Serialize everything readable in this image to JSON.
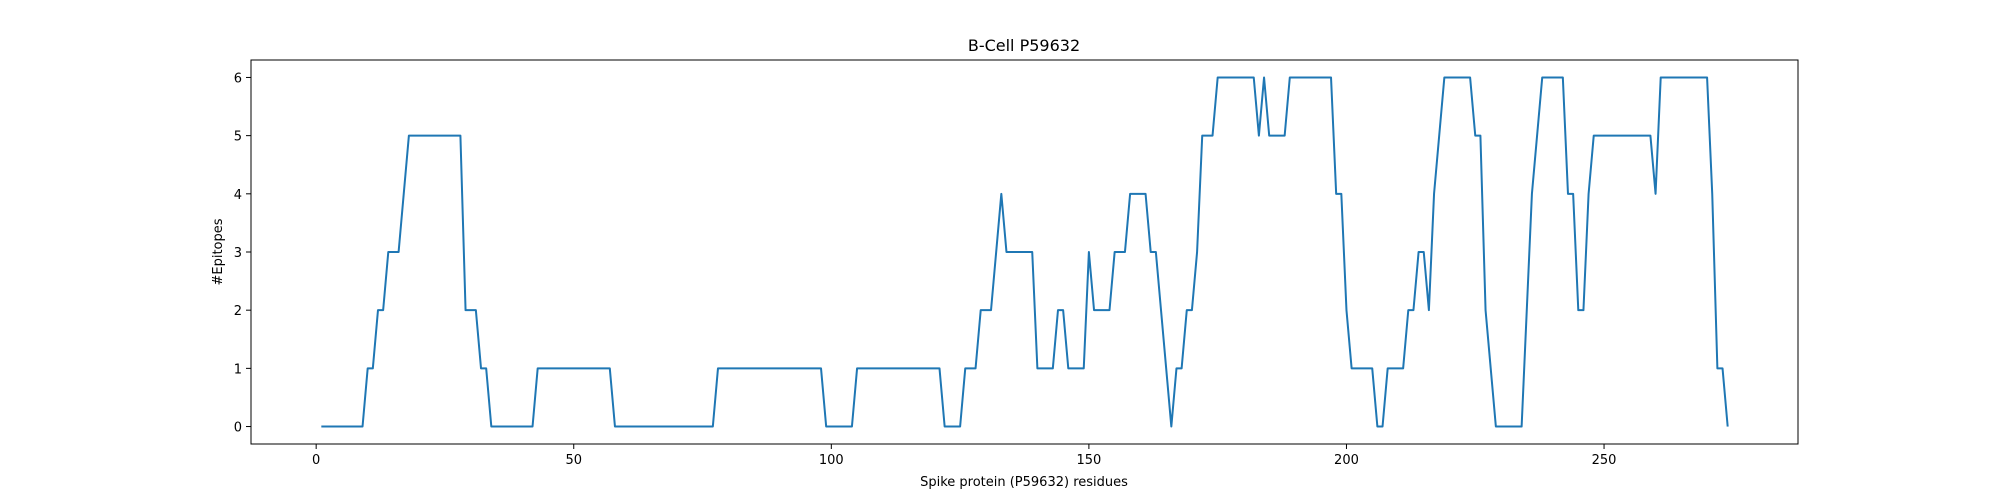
{
  "chart_data": {
    "type": "line",
    "title": "B-Cell P59632",
    "xlabel": "Spike protein (P59632) residues",
    "ylabel": "#Epitopes",
    "x": [
      1,
      2,
      3,
      4,
      5,
      6,
      7,
      8,
      9,
      10,
      11,
      12,
      13,
      14,
      15,
      16,
      17,
      18,
      19,
      20,
      21,
      22,
      23,
      24,
      25,
      26,
      27,
      28,
      29,
      30,
      31,
      32,
      33,
      34,
      35,
      36,
      37,
      38,
      39,
      40,
      41,
      42,
      43,
      44,
      45,
      46,
      47,
      48,
      49,
      50,
      51,
      52,
      53,
      54,
      55,
      56,
      57,
      58,
      59,
      60,
      61,
      62,
      63,
      64,
      65,
      66,
      67,
      68,
      69,
      70,
      71,
      72,
      73,
      74,
      75,
      76,
      77,
      78,
      79,
      80,
      81,
      82,
      83,
      84,
      85,
      86,
      87,
      88,
      89,
      90,
      91,
      92,
      93,
      94,
      95,
      96,
      97,
      98,
      99,
      100,
      101,
      102,
      103,
      104,
      105,
      106,
      107,
      108,
      109,
      110,
      111,
      112,
      113,
      114,
      115,
      116,
      117,
      118,
      119,
      120,
      121,
      122,
      123,
      124,
      125,
      126,
      127,
      128,
      129,
      130,
      131,
      132,
      133,
      134,
      135,
      136,
      137,
      138,
      139,
      140,
      141,
      142,
      143,
      144,
      145,
      146,
      147,
      148,
      149,
      150,
      151,
      152,
      153,
      154,
      155,
      156,
      157,
      158,
      159,
      160,
      161,
      162,
      163,
      164,
      165,
      166,
      167,
      168,
      169,
      170,
      171,
      172,
      173,
      174,
      175,
      176,
      177,
      178,
      179,
      180,
      181,
      182,
      183,
      184,
      185,
      186,
      187,
      188,
      189,
      190,
      191,
      192,
      193,
      194,
      195,
      196,
      197,
      198,
      199,
      200,
      201,
      202,
      203,
      204,
      205,
      206,
      207,
      208,
      209,
      210,
      211,
      212,
      213,
      214,
      215,
      216,
      217,
      218,
      219,
      220,
      221,
      222,
      223,
      224,
      225,
      226,
      227,
      228,
      229,
      230,
      231,
      232,
      233,
      234,
      235,
      236,
      237,
      238,
      239,
      240,
      241,
      242,
      243,
      244,
      245,
      246,
      247,
      248,
      249,
      250,
      251,
      252,
      253,
      254,
      255,
      256,
      257,
      258,
      259,
      260,
      261,
      262,
      263,
      264,
      265,
      266,
      267,
      268,
      269,
      270,
      271,
      272,
      273,
      274
    ],
    "series": [
      {
        "color": "#1f77b4",
        "values": [
          0,
          0,
          0,
          0,
          0,
          0,
          0,
          0,
          0,
          1,
          1,
          2,
          2,
          3,
          3,
          3,
          4,
          5,
          5,
          5,
          5,
          5,
          5,
          5,
          5,
          5,
          5,
          5,
          2,
          2,
          2,
          1,
          1,
          0,
          0,
          0,
          0,
          0,
          0,
          0,
          0,
          0,
          1,
          1,
          1,
          1,
          1,
          1,
          1,
          1,
          1,
          1,
          1,
          1,
          1,
          1,
          1,
          0,
          0,
          0,
          0,
          0,
          0,
          0,
          0,
          0,
          0,
          0,
          0,
          0,
          0,
          0,
          0,
          0,
          0,
          0,
          0,
          1,
          1,
          1,
          1,
          1,
          1,
          1,
          1,
          1,
          1,
          1,
          1,
          1,
          1,
          1,
          1,
          1,
          1,
          1,
          1,
          1,
          0,
          0,
          0,
          0,
          0,
          0,
          1,
          1,
          1,
          1,
          1,
          1,
          1,
          1,
          1,
          1,
          1,
          1,
          1,
          1,
          1,
          1,
          1,
          0,
          0,
          0,
          0,
          1,
          1,
          1,
          2,
          2,
          2,
          3,
          4,
          3,
          3,
          3,
          3,
          3,
          3,
          1,
          1,
          1,
          1,
          2,
          2,
          1,
          1,
          1,
          1,
          3,
          2,
          2,
          2,
          2,
          3,
          3,
          3,
          4,
          4,
          4,
          4,
          3,
          3,
          2,
          1,
          0,
          1,
          1,
          2,
          2,
          3,
          5,
          5,
          5,
          6,
          6,
          6,
          6,
          6,
          6,
          6,
          6,
          5,
          6,
          5,
          5,
          5,
          5,
          6,
          6,
          6,
          6,
          6,
          6,
          6,
          6,
          6,
          4,
          4,
          2,
          1,
          1,
          1,
          1,
          1,
          0,
          0,
          1,
          1,
          1,
          1,
          2,
          2,
          3,
          3,
          2,
          4,
          5,
          6,
          6,
          6,
          6,
          6,
          6,
          5,
          5,
          2,
          1,
          0,
          0,
          0,
          0,
          0,
          0,
          2,
          4,
          5,
          6,
          6,
          6,
          6,
          6,
          4,
          4,
          2,
          2,
          4,
          5,
          5,
          5,
          5,
          5,
          5,
          5,
          5,
          5,
          5,
          5,
          5,
          4,
          6,
          6,
          6,
          6,
          6,
          6,
          6,
          6,
          6,
          6,
          4,
          1,
          1,
          0
        ]
      }
    ],
    "xlim": [
      -12.65,
      287.65
    ],
    "ylim": [
      -0.3,
      6.3
    ],
    "xticks": [
      0,
      50,
      100,
      150,
      200,
      250
    ],
    "yticks": [
      0,
      1,
      2,
      3,
      4,
      5,
      6
    ]
  }
}
